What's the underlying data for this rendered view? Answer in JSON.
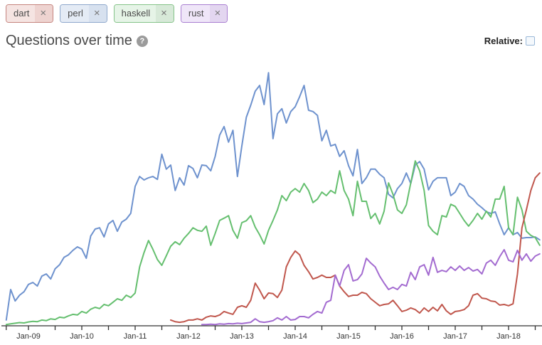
{
  "tags": [
    {
      "label": "dart",
      "close_icon": "×",
      "chip_bg": "#f5e4e2",
      "chip_x_bg": "#eed3d0",
      "chip_border": "#c5847e",
      "line_color": "#c0574d"
    },
    {
      "label": "perl",
      "close_icon": "×",
      "chip_bg": "#e4ebf5",
      "chip_x_bg": "#d7e1ef",
      "chip_border": "#8fa8cc",
      "line_color": "#6e92ce"
    },
    {
      "label": "haskell",
      "close_icon": "×",
      "chip_bg": "#e6f4e7",
      "chip_x_bg": "#d7e9d8",
      "chip_border": "#85c389",
      "line_color": "#65bf6f"
    },
    {
      "label": "rust",
      "close_icon": "×",
      "chip_bg": "#efe6f8",
      "chip_x_bg": "#e3d6f0",
      "chip_border": "#a97fd1",
      "line_color": "#a36bd0"
    }
  ],
  "header": {
    "title": "Questions over time",
    "help_icon": "?",
    "relative_label": "Relative:",
    "relative_checked": false
  },
  "chart_data": {
    "type": "line",
    "title": "Questions over time",
    "xlabel": "",
    "ylabel": "",
    "x_start_month": "2008-08",
    "x_end_month": "2018-08",
    "x_cadence": "monthly",
    "x_tick_labels": [
      "Jan-09",
      "Jan-10",
      "Jan-11",
      "Jan-12",
      "Jan-13",
      "Jan-14",
      "Jan-15",
      "Jan-16",
      "Jan-17",
      "Jan-18"
    ],
    "minor_ticks_each": "Jul",
    "ylim": [
      0,
      800
    ],
    "y_axis_visible": false,
    "grid": false,
    "legend_position": "tag chips top-left",
    "axis_color": "#333333",
    "series": [
      {
        "name": "perl",
        "color": "#6e92ce",
        "values": [
          18,
          114,
          78,
          96,
          107,
          130,
          136,
          125,
          156,
          163,
          147,
          179,
          192,
          215,
          223,
          237,
          248,
          241,
          212,
          282,
          304,
          308,
          279,
          320,
          331,
          297,
          326,
          335,
          353,
          438,
          469,
          458,
          465,
          469,
          460,
          539,
          492,
          505,
          425,
          465,
          442,
          503,
          494,
          465,
          505,
          503,
          487,
          532,
          599,
          626,
          577,
          614,
          469,
          565,
          655,
          693,
          737,
          755,
          695,
          795,
          588,
          666,
          682,
          637,
          673,
          688,
          720,
          755,
          677,
          673,
          661,
          581,
          614,
          565,
          570,
          532,
          550,
          503,
          471,
          554,
          447,
          465,
          492,
          492,
          476,
          465,
          413,
          402,
          431,
          447,
          480,
          447,
          505,
          516,
          492,
          427,
          454,
          465,
          465,
          465,
          409,
          420,
          447,
          438,
          409,
          398,
          382,
          371,
          358,
          353,
          358,
          320,
          286,
          308,
          286,
          293,
          275,
          277,
          277,
          279,
          270
        ]
      },
      {
        "name": "haskell",
        "color": "#65bf6f",
        "values": [
          4,
          6,
          8,
          10,
          9,
          12,
          14,
          13,
          18,
          16,
          22,
          20,
          27,
          25,
          31,
          36,
          34,
          45,
          40,
          52,
          58,
          54,
          67,
          63,
          74,
          85,
          80,
          96,
          89,
          103,
          185,
          230,
          268,
          240,
          208,
          190,
          220,
          250,
          264,
          255,
          275,
          290,
          308,
          300,
          297,
          313,
          253,
          290,
          331,
          338,
          346,
          300,
          275,
          324,
          330,
          346,
          310,
          286,
          257,
          300,
          331,
          364,
          409,
          393,
          420,
          431,
          420,
          447,
          425,
          387,
          398,
          420,
          409,
          425,
          416,
          487,
          425,
          398,
          346,
          454,
          391,
          391,
          337,
          353,
          320,
          360,
          449,
          413,
          364,
          353,
          380,
          449,
          518,
          487,
          425,
          315,
          297,
          286,
          346,
          342,
          382,
          375,
          353,
          331,
          313,
          331,
          353,
          335,
          360,
          342,
          398,
          398,
          438,
          308,
          286,
          404,
          364,
          297,
          284,
          277,
          253
        ]
      },
      {
        "name": "dart",
        "color": "#c0574d",
        "values": [
          null,
          null,
          null,
          null,
          null,
          null,
          null,
          null,
          null,
          null,
          null,
          null,
          null,
          null,
          null,
          null,
          null,
          null,
          null,
          null,
          null,
          null,
          null,
          null,
          null,
          null,
          null,
          null,
          null,
          null,
          null,
          null,
          null,
          null,
          null,
          null,
          null,
          18,
          13,
          11,
          13,
          18,
          18,
          22,
          18,
          27,
          31,
          29,
          34,
          45,
          40,
          36,
          58,
          63,
          58,
          80,
          134,
          112,
          85,
          103,
          101,
          89,
          112,
          185,
          215,
          235,
          223,
          190,
          170,
          147,
          152,
          159,
          152,
          152,
          159,
          125,
          107,
          92,
          96,
          96,
          105,
          101,
          85,
          74,
          63,
          67,
          69,
          80,
          63,
          45,
          49,
          56,
          51,
          40,
          56,
          45,
          58,
          47,
          67,
          47,
          36,
          45,
          47,
          51,
          63,
          96,
          101,
          87,
          85,
          78,
          76,
          65,
          67,
          63,
          69,
          163,
          308,
          364,
          425,
          465,
          480
        ]
      },
      {
        "name": "rust",
        "color": "#a36bd0",
        "values": [
          null,
          null,
          null,
          null,
          null,
          null,
          null,
          null,
          null,
          null,
          null,
          null,
          null,
          null,
          null,
          null,
          null,
          null,
          null,
          null,
          null,
          null,
          null,
          null,
          null,
          null,
          null,
          null,
          null,
          null,
          null,
          null,
          null,
          null,
          null,
          null,
          null,
          null,
          null,
          null,
          null,
          null,
          null,
          null,
          4,
          4,
          5,
          4,
          6,
          5,
          7,
          6,
          8,
          7,
          9,
          11,
          22,
          13,
          11,
          13,
          16,
          25,
          18,
          29,
          18,
          20,
          29,
          29,
          25,
          36,
          45,
          40,
          74,
          80,
          159,
          125,
          174,
          192,
          141,
          145,
          163,
          212,
          197,
          185,
          156,
          134,
          114,
          121,
          114,
          130,
          125,
          168,
          145,
          185,
          192,
          159,
          215,
          168,
          174,
          170,
          185,
          174,
          188,
          174,
          183,
          172,
          177,
          163,
          197,
          206,
          190,
          217,
          239,
          206,
          201,
          237,
          206,
          226,
          203,
          219,
          226
        ]
      }
    ]
  }
}
